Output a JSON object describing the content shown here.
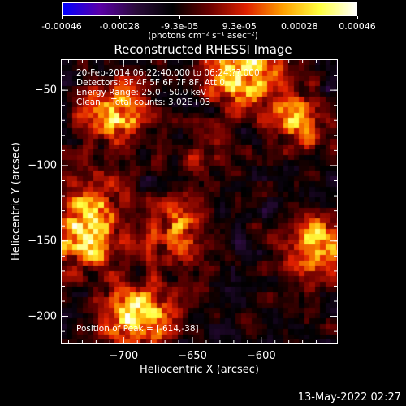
{
  "colorbar": {
    "tick_labels": [
      "-0.00046",
      "-0.00028",
      "-9.3e-05",
      "9.3e-05",
      "0.00028",
      "0.00046"
    ],
    "tick_values": [
      -0.00046,
      -0.00028,
      -9.3e-05,
      9.3e-05,
      0.00028,
      0.00046
    ],
    "units": "(photons cm⁻² s⁻¹ asec⁻²)",
    "range": [
      -0.00046,
      0.00046
    ]
  },
  "info_lines": [
    "20-Feb-2014 06:22:40.000 to 06:24:??.000",
    "Detectors: 3F 4F 5F 6F 7F 8F, Att 0",
    "Energy Range: 25.0 - 50.0 keV",
    "Clean    Total counts: 3.02E+03"
  ],
  "peak_label": "Position of Peak = [-614,-38]",
  "datestamp": "13-May-2022 02:27",
  "chart_data": {
    "type": "heatmap",
    "title": "Reconstructed RHESSI Image",
    "xlabel": "Heliocentric X (arcsec)",
    "ylabel": "Heliocentric Y (arcsec)",
    "xlim": [
      -745,
      -545
    ],
    "ylim": [
      -218,
      -30
    ],
    "xticks": [
      -700,
      -650,
      -600
    ],
    "yticks": [
      -50,
      -100,
      -150,
      -200
    ],
    "peak": [
      -614,
      -38
    ],
    "colormap": [
      "#0000ff",
      "#5a00a8",
      "#2a0a3a",
      "#000000",
      "#6a0000",
      "#e02000",
      "#ffa000",
      "#ffff40",
      "#ffffff"
    ],
    "bright_sources": [
      {
        "x": -614,
        "y": -38,
        "value": 0.00046
      },
      {
        "x": -705,
        "y": -65,
        "value": 0.00035
      },
      {
        "x": -728,
        "y": -148,
        "value": 0.0004
      },
      {
        "x": -690,
        "y": -200,
        "value": 0.00042
      },
      {
        "x": -660,
        "y": -145,
        "value": 0.0003
      },
      {
        "x": -575,
        "y": -70,
        "value": 0.0003
      },
      {
        "x": -560,
        "y": -155,
        "value": 0.00035
      },
      {
        "x": -640,
        "y": -90,
        "value": 0.00012
      },
      {
        "x": -720,
        "y": -120,
        "value": 0.0002
      }
    ]
  }
}
